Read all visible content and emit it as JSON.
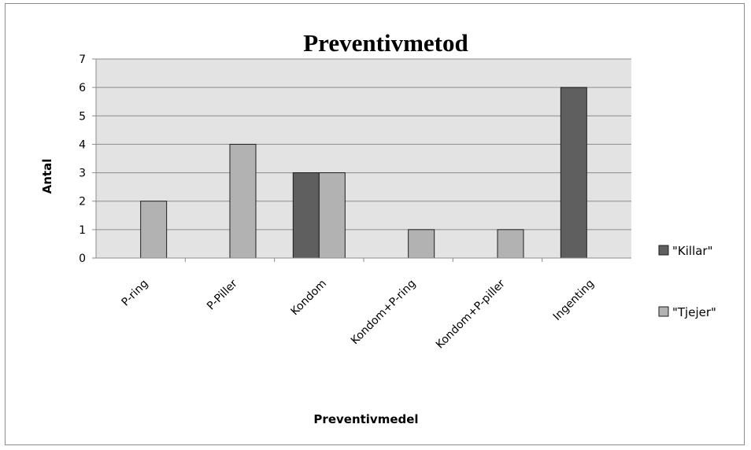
{
  "chart_data": {
    "type": "bar",
    "title": "Preventivmetod",
    "xlabel": "Preventivmedel",
    "ylabel": "Antal",
    "categories": [
      "P-ring",
      "P-Piller",
      "Kondom",
      "Kondom+P-ring",
      "Kondom+P-piller",
      "Ingenting"
    ],
    "series": [
      {
        "name": "\"Killar\"",
        "values": [
          0,
          0,
          3,
          0,
          0,
          6
        ],
        "color": "#5f5f5f"
      },
      {
        "name": "\"Tjejer\"",
        "values": [
          2,
          4,
          3,
          1,
          1,
          0
        ],
        "color": "#b2b2b2"
      }
    ],
    "ylim": [
      0,
      7
    ],
    "yticks": [
      0,
      1,
      2,
      3,
      4,
      5,
      6,
      7
    ],
    "grid": true,
    "legend_position": "right"
  },
  "colors": {
    "plot_background": "#e3e3e3",
    "gridline": "#8c8c8c",
    "bar_outline": "#1e1e1e"
  }
}
